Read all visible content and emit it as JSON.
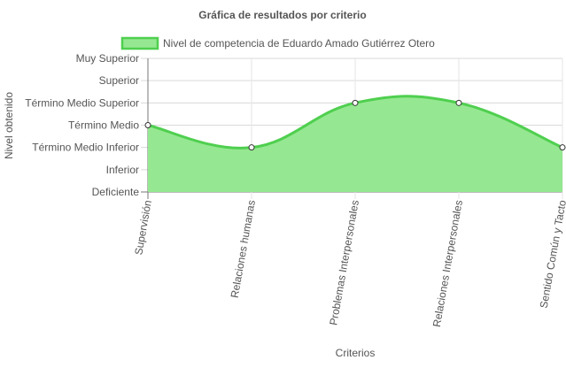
{
  "chart_data": {
    "type": "area",
    "title": "Gráfica de resultados por criterio",
    "xlabel": "Criterios",
    "ylabel": "Nivel obtenido",
    "categories": [
      "Supervisión",
      "Relaciones humanas",
      "Problemas Interpersonales",
      "Relaciones Interpersonales",
      "Sentido Común y Tacto"
    ],
    "y_levels": [
      "Deficiente",
      "Inferior",
      "Término Medio Inferior",
      "Término Medio",
      "Término Medio Superior",
      "Superior",
      "Muy Superior"
    ],
    "ylim": [
      0,
      6
    ],
    "series": [
      {
        "name": "Nivel de competencia de Eduardo Amado Gutiérrez Otero",
        "values": [
          3,
          2,
          4,
          4,
          2
        ],
        "border_color": "#4fcf4f",
        "fill_color": "#95e891"
      }
    ],
    "grid": true,
    "legend_position": "top",
    "colors": {
      "grid": "#e6e6e6",
      "axis": "#777777",
      "text": "#555555",
      "point_fill": "#ffffff",
      "point_stroke": "#333333"
    }
  }
}
